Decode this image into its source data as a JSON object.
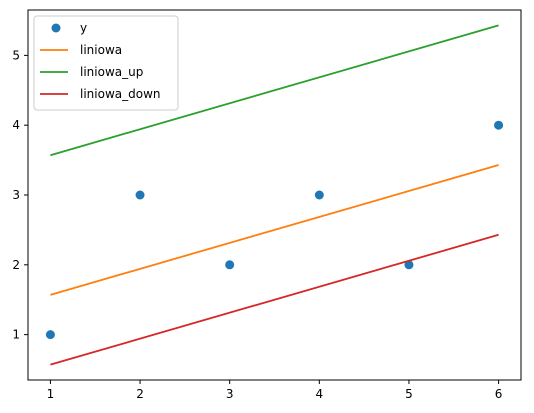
{
  "chart_data": {
    "type": "line",
    "title": "",
    "xlabel": "",
    "ylabel": "",
    "xlim": [
      0.75,
      6.25
    ],
    "ylim": [
      0.35,
      5.65
    ],
    "grid": false,
    "legend_position": "top-left",
    "x_ticks": [
      "1",
      "2",
      "3",
      "4",
      "5",
      "6"
    ],
    "y_ticks": [
      "1",
      "2",
      "3",
      "4",
      "5"
    ],
    "series": [
      {
        "name": "y",
        "kind": "scatter",
        "color": "#1f77b4",
        "x": [
          1,
          2,
          3,
          4,
          5,
          6
        ],
        "y": [
          1,
          3,
          2,
          3,
          2,
          4
        ]
      },
      {
        "name": "liniowa",
        "kind": "line",
        "color": "#ff7f0e",
        "x": [
          1,
          6
        ],
        "y": [
          1.57,
          3.43
        ]
      },
      {
        "name": "liniowa_up",
        "kind": "line",
        "color": "#2ca02c",
        "x": [
          1,
          6
        ],
        "y": [
          3.57,
          5.43
        ]
      },
      {
        "name": "liniowa_down",
        "kind": "line",
        "color": "#d62728",
        "x": [
          1,
          6
        ],
        "y": [
          0.57,
          2.43
        ]
      }
    ]
  }
}
